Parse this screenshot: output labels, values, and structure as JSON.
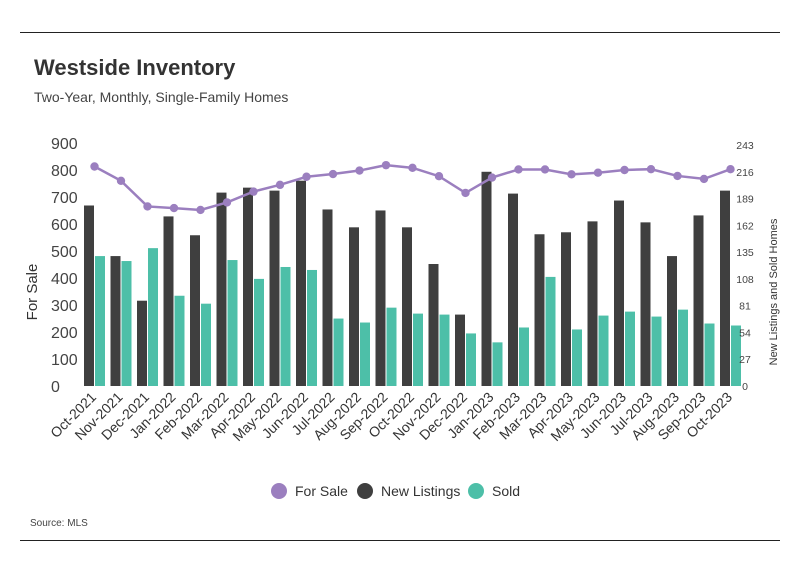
{
  "header": {
    "title": "Westside Inventory",
    "subtitle": "Two-Year, Monthly, Single-Family Homes"
  },
  "footer": {
    "source": "Source: MLS"
  },
  "colors": {
    "for_sale": "#9b7fbf",
    "new_listings": "#3f3f3f",
    "sold": "#4dbfa8"
  },
  "chart_data": {
    "type": "bar",
    "title": "Westside Inventory",
    "subtitle": "Two-Year, Monthly, Single-Family Homes",
    "categories": [
      "Oct-2021",
      "Nov-2021",
      "Dec-2021",
      "Jan-2022",
      "Feb-2022",
      "Mar-2022",
      "Apr-2022",
      "May-2022",
      "Jun-2022",
      "Jul-2022",
      "Aug-2022",
      "Sep-2022",
      "Oct-2022",
      "Nov-2022",
      "Dec-2022",
      "Jan-2023",
      "Feb-2023",
      "Mar-2023",
      "Apr-2023",
      "May-2023",
      "Jun-2023",
      "Jul-2023",
      "Aug-2023",
      "Sep-2023",
      "Oct-2023"
    ],
    "left_axis": {
      "label": "For Sale",
      "ylim": [
        0,
        900
      ],
      "ticks": [
        "0",
        "100",
        "200",
        "300",
        "400",
        "500",
        "600",
        "700",
        "800",
        "900"
      ]
    },
    "right_axis": {
      "label": "New Listings and Sold Homes",
      "ylim": [
        0,
        243
      ],
      "ticks": [
        "0",
        "27",
        "54",
        "81",
        "108",
        "135",
        "162",
        "189",
        "216",
        "243"
      ]
    },
    "series": [
      {
        "name": "For Sale",
        "type": "line",
        "axis": "left",
        "values": [
          813,
          760,
          665,
          659,
          652,
          680,
          720,
          745,
          775,
          785,
          798,
          818,
          808,
          777,
          715,
          772,
          802,
          802,
          784,
          790,
          800,
          803,
          778,
          767,
          803
        ]
      },
      {
        "name": "New Listings",
        "type": "bar",
        "axis": "right",
        "values": [
          182,
          131,
          86,
          171,
          152,
          195,
          200,
          197,
          207,
          178,
          160,
          177,
          160,
          123,
          72,
          216,
          194,
          153,
          155,
          166,
          187,
          165,
          131,
          172,
          197
        ]
      },
      {
        "name": "Sold",
        "type": "bar",
        "axis": "right",
        "values": [
          131,
          126,
          139,
          91,
          83,
          127,
          108,
          120,
          117,
          68,
          64,
          79,
          73,
          72,
          53,
          44,
          59,
          110,
          57,
          71,
          75,
          70,
          77,
          63,
          61
        ]
      }
    ],
    "legend": {
      "position": "bottom",
      "entries": [
        "For Sale",
        "New Listings",
        "Sold"
      ]
    },
    "grid": false
  }
}
